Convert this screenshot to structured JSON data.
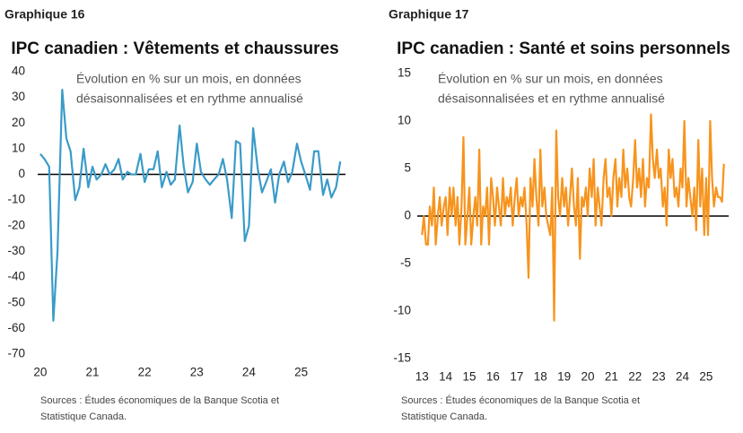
{
  "chart_data": [
    {
      "type": "line",
      "label": "Graphique 16",
      "title": "IPC canadien : Vêtements et chaussures",
      "subtitle": [
        "Évolution en % sur un mois, en données",
        "désaisonnalisées et en rythme annualisé"
      ],
      "source": [
        "Sources : Études économiques de la Banque Scotia et",
        "Statistique Canada."
      ],
      "color": "#3a9bc8",
      "x": [
        2020,
        2020.08,
        2020.17,
        2020.25,
        2020.33,
        2020.42,
        2020.5,
        2020.58,
        2020.67,
        2020.75,
        2020.83,
        2020.92,
        2021,
        2021.08,
        2021.17,
        2021.25,
        2021.33,
        2021.42,
        2021.5,
        2021.58,
        2021.67,
        2021.75,
        2021.83,
        2021.92,
        2022,
        2022.08,
        2022.17,
        2022.25,
        2022.33,
        2022.42,
        2022.5,
        2022.58,
        2022.67,
        2022.75,
        2022.83,
        2022.92,
        2023,
        2023.08,
        2023.17,
        2023.25,
        2023.33,
        2023.42,
        2023.5,
        2023.58,
        2023.67,
        2023.75,
        2023.83,
        2023.92,
        2024,
        2024.08,
        2024.17,
        2024.25,
        2024.33,
        2024.42,
        2024.5,
        2024.58,
        2024.67,
        2024.75,
        2024.83,
        2024.92,
        2025,
        2025.08,
        2025.17,
        2025.25,
        2025.33,
        2025.42,
        2025.5,
        2025.58,
        2025.67,
        2025.75
      ],
      "values": [
        8,
        6,
        3,
        -57,
        -30,
        33,
        14,
        9,
        -10,
        -5,
        10,
        -5,
        3,
        -2,
        0,
        4,
        0,
        2,
        6,
        -2,
        1,
        0,
        0,
        8,
        -3,
        2,
        2,
        9,
        -5,
        1,
        -4,
        -2,
        19,
        3,
        -7,
        -3,
        12,
        1,
        -2,
        -4,
        -2,
        0,
        6,
        -2,
        -17,
        13,
        12,
        -26,
        -20,
        18,
        2,
        -7,
        -3,
        2,
        -11,
        0,
        5,
        -3,
        1,
        12,
        5,
        0,
        -6,
        9,
        9,
        -8,
        -2,
        -9,
        -5,
        5
      ],
      "xlim": [
        2019.95,
        2025.85
      ],
      "xticks": [
        {
          "value": 2020,
          "label": "20"
        },
        {
          "value": 2021,
          "label": "21"
        },
        {
          "value": 2022,
          "label": "22"
        },
        {
          "value": 2023,
          "label": "23"
        },
        {
          "value": 2024,
          "label": "24"
        },
        {
          "value": 2025,
          "label": "25"
        }
      ],
      "ylim": [
        -70,
        40
      ],
      "yticks": [
        -70,
        -60,
        -50,
        -40,
        -30,
        -20,
        -10,
        0,
        10,
        20,
        30,
        40
      ]
    },
    {
      "type": "line",
      "label": "Graphique 17",
      "title": "IPC canadien : Santé et soins personnels",
      "subtitle": [
        "Évolution en % sur un mois, en données",
        "désaisonnalisées et en rythme annualisé"
      ],
      "source": [
        "Sources : Études économiques de la Banque Scotia et",
        "Statistique Canada."
      ],
      "color": "#f7941d",
      "x": [
        2013,
        2013.08,
        2013.17,
        2013.25,
        2013.33,
        2013.42,
        2013.5,
        2013.58,
        2013.67,
        2013.75,
        2013.83,
        2013.92,
        2014,
        2014.08,
        2014.17,
        2014.25,
        2014.33,
        2014.42,
        2014.5,
        2014.58,
        2014.67,
        2014.75,
        2014.83,
        2014.92,
        2015,
        2015.08,
        2015.17,
        2015.25,
        2015.33,
        2015.42,
        2015.5,
        2015.58,
        2015.67,
        2015.75,
        2015.83,
        2015.92,
        2016,
        2016.08,
        2016.17,
        2016.25,
        2016.33,
        2016.42,
        2016.5,
        2016.58,
        2016.67,
        2016.75,
        2016.83,
        2016.92,
        2017,
        2017.08,
        2017.17,
        2017.25,
        2017.33,
        2017.42,
        2017.5,
        2017.58,
        2017.67,
        2017.75,
        2017.83,
        2017.92,
        2018,
        2018.08,
        2018.17,
        2018.25,
        2018.33,
        2018.42,
        2018.5,
        2018.58,
        2018.67,
        2018.75,
        2018.83,
        2018.92,
        2019,
        2019.08,
        2019.17,
        2019.25,
        2019.33,
        2019.42,
        2019.5,
        2019.58,
        2019.67,
        2019.75,
        2019.83,
        2019.92,
        2020,
        2020.08,
        2020.17,
        2020.25,
        2020.33,
        2020.42,
        2020.5,
        2020.58,
        2020.67,
        2020.75,
        2020.83,
        2020.92,
        2021,
        2021.08,
        2021.17,
        2021.25,
        2021.33,
        2021.42,
        2021.5,
        2021.58,
        2021.67,
        2021.75,
        2021.83,
        2021.92,
        2022,
        2022.08,
        2022.17,
        2022.25,
        2022.33,
        2022.42,
        2022.5,
        2022.58,
        2022.67,
        2022.75,
        2022.83,
        2022.92,
        2023,
        2023.08,
        2023.17,
        2023.25,
        2023.33,
        2023.42,
        2023.5,
        2023.58,
        2023.67,
        2023.75,
        2023.83,
        2023.92,
        2024,
        2024.08,
        2024.17,
        2024.25,
        2024.33,
        2024.42,
        2024.5,
        2024.58,
        2024.67,
        2024.75,
        2024.83,
        2024.92,
        2025,
        2025.08,
        2025.17,
        2025.25,
        2025.33,
        2025.42,
        2025.5,
        2025.58,
        2025.67,
        2025.75
      ],
      "values": [
        -2,
        0,
        -3,
        -3,
        1,
        -1,
        3,
        -3,
        0,
        2,
        -1,
        1,
        2,
        -2,
        3,
        0,
        3,
        -1,
        2,
        -3,
        1,
        8.3,
        -3,
        0,
        3,
        -3,
        0,
        2,
        -1,
        7,
        -3,
        1,
        0,
        3,
        -3,
        4,
        2,
        -1,
        3,
        1,
        -1,
        4,
        0,
        2,
        1,
        3,
        -1,
        2,
        4,
        0,
        2,
        1,
        3,
        -1,
        -6.5,
        4,
        1,
        6,
        2,
        -1,
        7,
        1,
        3,
        0,
        -1,
        -2,
        3,
        -11,
        9,
        2,
        0,
        4,
        1,
        3,
        -1,
        2,
        5,
        1,
        -1,
        4,
        -4.5,
        2,
        1,
        3,
        0,
        5,
        2,
        6,
        -1,
        3,
        1,
        -1,
        4,
        6,
        2,
        3,
        0,
        4,
        6,
        1,
        4,
        2,
        7,
        3,
        5,
        2,
        1,
        4,
        8,
        3,
        5,
        2,
        6,
        1,
        4,
        3,
        10.7,
        6,
        4,
        7,
        4,
        5,
        1,
        3,
        -1,
        7,
        4,
        6,
        2,
        3,
        1,
        5,
        3,
        10,
        1,
        4,
        2,
        0,
        3,
        -1.5,
        8,
        1,
        5,
        -2,
        4,
        -2,
        10,
        4,
        1,
        3,
        2,
        2,
        1.5,
        5.5
      ],
      "xlim": [
        2012.8,
        2025.95
      ],
      "xticks": [
        {
          "value": 2013,
          "label": "13"
        },
        {
          "value": 2014,
          "label": "14"
        },
        {
          "value": 2015,
          "label": "15"
        },
        {
          "value": 2016,
          "label": "16"
        },
        {
          "value": 2017,
          "label": "17"
        },
        {
          "value": 2018,
          "label": "18"
        },
        {
          "value": 2019,
          "label": "19"
        },
        {
          "value": 2020,
          "label": "20"
        },
        {
          "value": 2021,
          "label": "21"
        },
        {
          "value": 2022,
          "label": "22"
        },
        {
          "value": 2023,
          "label": "23"
        },
        {
          "value": 2024,
          "label": "24"
        },
        {
          "value": 2025,
          "label": "25"
        }
      ],
      "ylim": [
        -15,
        15
      ],
      "yticks": [
        -15,
        -10,
        -5,
        0,
        5,
        10,
        15
      ]
    }
  ]
}
